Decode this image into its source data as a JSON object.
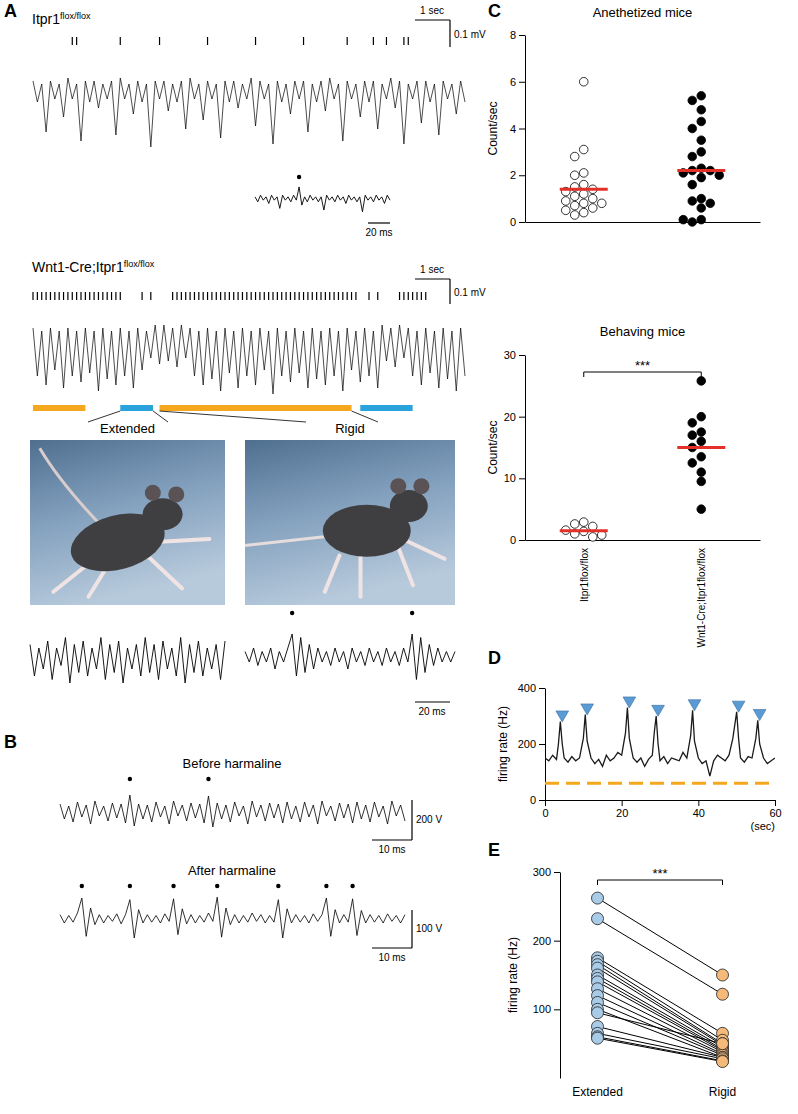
{
  "figure": {
    "panel_labels": [
      "A",
      "B",
      "C",
      "D",
      "E"
    ],
    "genotypes": [
      {
        "text": "Itpr1",
        "superscript": "flox/flox"
      },
      {
        "text": "Wnt1-Cre;Itpr1",
        "superscript": "flox/flox"
      }
    ],
    "photos": [
      {
        "label": "Extended"
      },
      {
        "label": "Rigid"
      }
    ]
  },
  "chart_data": [
    {
      "type": "line",
      "tick_labels": false,
      "marker": "tick",
      "ylim": [
        -0.2,
        0.1
      ],
      "scale_bars": [
        "1 sec",
        "0.1 mV"
      ],
      "values": [
        0.03,
        -0.04,
        0.02,
        -0.14,
        0.03,
        -0.03,
        0.02,
        -0.09,
        0.04,
        -0.03,
        0.02,
        -0.17,
        0.03,
        -0.04,
        0.03,
        -0.06,
        0.02,
        -0.03,
        0.03,
        -0.15,
        0.04,
        -0.03,
        0.02,
        -0.08,
        0.03,
        -0.04,
        0.02,
        -0.19,
        0.03,
        -0.03,
        0.03,
        -0.07,
        0.02,
        -0.04,
        0.03,
        -0.13,
        0.04,
        -0.03,
        0.02,
        -0.1,
        0.03,
        -0.03,
        0.02,
        -0.16,
        0.03,
        -0.04,
        0.03,
        -0.06,
        0.02,
        -0.03,
        0.04,
        -0.12,
        0.03,
        -0.03,
        0.02,
        -0.18,
        0.03,
        -0.04,
        0.02,
        -0.08,
        0.03,
        -0.03,
        0.03,
        -0.14,
        0.02,
        -0.04,
        0.03,
        -0.07,
        0.04,
        -0.03,
        0.02,
        -0.17,
        0.03,
        -0.03,
        0.02,
        -0.09,
        0.03,
        -0.04,
        0.03,
        -0.13,
        0.02,
        -0.03,
        0.04,
        -0.06,
        0.03,
        -0.18,
        0.02,
        -0.03,
        0.03,
        -0.11,
        0.03,
        -0.04,
        0.02,
        -0.15,
        0.03,
        -0.03,
        0.02,
        -0.08,
        0.03,
        -0.04
      ],
      "spikes": [
        9,
        10,
        20,
        29,
        40,
        51,
        62,
        72,
        78,
        81,
        85,
        86
      ]
    },
    {
      "type": "line",
      "tick_labels": false,
      "marker": "circle",
      "ylim": [
        -0.1,
        0.1
      ],
      "scale_bars": [
        "20 ms"
      ],
      "values": [
        0.01,
        -0.02,
        0.02,
        -0.01,
        0.01,
        -0.03,
        0.02,
        -0.01,
        0.01,
        -0.06,
        0.02,
        -0.01,
        0.01,
        -0.02,
        0.02,
        -0.01,
        0.07,
        -0.04,
        0.01,
        -0.02,
        0.02,
        -0.01,
        0.01,
        -0.02,
        0.01,
        -0.07,
        0.02,
        -0.01,
        0.01,
        -0.02,
        0.02,
        -0.01,
        0.01,
        -0.03,
        0.02,
        -0.01,
        0.01,
        -0.02,
        0.01,
        -0.08,
        0.02,
        -0.01,
        0.01,
        -0.02,
        0.02,
        -0.01,
        0.01,
        -0.03,
        0.02,
        -0.01
      ],
      "spikes": [
        16
      ]
    },
    {
      "type": "line",
      "tick_labels": false,
      "marker": "tick",
      "ylim": [
        -0.2,
        0.1
      ],
      "scale_bars": [
        "1 sec",
        "0.1 mV"
      ],
      "values": [
        0.04,
        -0.12,
        0.03,
        -0.15,
        0.04,
        -0.1,
        0.03,
        -0.16,
        0.04,
        -0.12,
        0.03,
        -0.14,
        0.04,
        -0.11,
        0.03,
        -0.17,
        0.04,
        -0.13,
        0.03,
        -0.15,
        0.04,
        -0.12,
        0.03,
        -0.16,
        0.04,
        -0.1,
        0.03,
        -0.06,
        0.05,
        -0.08,
        0.05,
        -0.07,
        0.04,
        -0.09,
        0.05,
        -0.06,
        0.04,
        -0.12,
        0.03,
        -0.15,
        0.04,
        -0.13,
        0.03,
        -0.17,
        0.04,
        -0.11,
        0.03,
        -0.16,
        0.04,
        -0.12,
        0.03,
        -0.15,
        0.04,
        -0.1,
        0.03,
        -0.18,
        0.04,
        -0.12,
        0.03,
        -0.14,
        0.04,
        -0.11,
        0.03,
        -0.16,
        0.04,
        -0.13,
        0.03,
        -0.15,
        0.04,
        -0.12,
        0.03,
        -0.17,
        0.04,
        -0.1,
        0.03,
        -0.14,
        0.04,
        -0.12,
        0.03,
        -0.16,
        0.05,
        -0.07,
        0.04,
        -0.09,
        0.05,
        -0.06,
        0.04,
        -0.12,
        0.03,
        -0.15,
        0.04,
        -0.11,
        0.03,
        -0.16,
        0.04,
        -0.13,
        0.03,
        -0.17,
        0.04,
        -0.12
      ],
      "spikes": [
        0,
        1,
        2,
        3,
        4,
        5,
        6,
        7,
        8,
        9,
        10,
        11,
        12,
        13,
        14,
        15,
        16,
        17,
        18,
        19,
        20,
        25,
        27,
        32,
        33,
        34,
        35,
        36,
        37,
        38,
        39,
        40,
        41,
        42,
        43,
        44,
        45,
        46,
        47,
        48,
        49,
        50,
        51,
        52,
        53,
        54,
        55,
        56,
        57,
        58,
        59,
        60,
        61,
        62,
        63,
        64,
        65,
        66,
        67,
        68,
        69,
        70,
        71,
        72,
        73,
        74,
        77,
        79,
        84,
        85,
        86,
        87,
        88,
        89,
        90
      ],
      "states": [
        {
          "start": 0,
          "end": 12,
          "color": "#f5a81d"
        },
        {
          "start": 20,
          "end": 27.5,
          "color": "#2aa3dc"
        },
        {
          "start": 29,
          "end": 73,
          "color": "#f5a81d"
        },
        {
          "start": 75,
          "end": 87,
          "color": "#2aa3dc"
        }
      ]
    },
    {
      "type": "line",
      "tick_labels": false,
      "ylim": [
        -0.1,
        0.1
      ],
      "values": [
        0.03,
        -0.06,
        0.02,
        -0.04,
        0.04,
        -0.07,
        0.02,
        -0.03,
        0.05,
        -0.08,
        0.03,
        -0.05,
        0.04,
        -0.06,
        0.02,
        -0.04,
        0.05,
        -0.07,
        0.03,
        -0.05,
        0.04,
        -0.08,
        0.02,
        -0.04,
        0.03,
        -0.06,
        0.05,
        -0.05,
        0.03,
        -0.07,
        0.04,
        -0.04,
        0.02,
        -0.06,
        0.05,
        -0.08,
        0.03,
        -0.05,
        0.04,
        -0.06,
        0.02,
        -0.04,
        0.03,
        -0.07,
        0.04
      ]
    },
    {
      "type": "line",
      "tick_labels": false,
      "marker": "circle",
      "ylim": [
        -0.1,
        0.1
      ],
      "scale_bars": [
        "20 ms"
      ],
      "values": [
        0.01,
        -0.02,
        0.02,
        -0.03,
        0.01,
        -0.02,
        0.02,
        -0.04,
        0.01,
        -0.02,
        0.02,
        0.06,
        -0.06,
        0.05,
        -0.05,
        0.03,
        -0.04,
        0.02,
        -0.02,
        0.01,
        -0.03,
        0.02,
        -0.02,
        0.01,
        -0.04,
        0.02,
        -0.02,
        0.01,
        -0.03,
        0.02,
        -0.02,
        0.01,
        -0.03,
        0.02,
        -0.02,
        0.01,
        -0.03,
        0.02,
        -0.02,
        0.06,
        -0.07,
        0.05,
        -0.05,
        0.03,
        -0.03,
        0.02,
        -0.02,
        0.01,
        -0.02,
        0.01
      ],
      "spikes": [
        11,
        39
      ]
    },
    {
      "type": "line",
      "tick_labels": false,
      "marker": "circle",
      "title": "Before harmaline",
      "ylim": [
        -250,
        250
      ],
      "scale_bars": [
        "10 ms",
        "200 V"
      ],
      "values": [
        60,
        -90,
        40,
        -120,
        80,
        -70,
        50,
        -140,
        90,
        -60,
        40,
        -110,
        70,
        -80,
        60,
        -130,
        150,
        -160,
        60,
        -90,
        50,
        -120,
        80,
        -70,
        40,
        -140,
        90,
        -60,
        50,
        -110,
        70,
        -80,
        60,
        -130,
        140,
        -170,
        70,
        -90,
        50,
        -120,
        80,
        -60,
        40,
        -140,
        90,
        -70,
        50,
        -110,
        70,
        -80,
        60,
        -130,
        80,
        -90,
        40,
        -120,
        80,
        -70,
        50,
        -140,
        90,
        -60,
        40,
        -110,
        70,
        -80,
        60,
        -130,
        80,
        -90,
        50,
        -120,
        80,
        -70,
        40,
        -140,
        90,
        -60,
        50,
        -110
      ],
      "spikes": [
        16,
        34
      ]
    },
    {
      "type": "line",
      "tick_labels": false,
      "marker": "circle",
      "title": "After harmaline",
      "ylim": [
        -150,
        150
      ],
      "scale_bars": [
        "10 ms",
        "100 V"
      ],
      "values": [
        20,
        -30,
        15,
        -25,
        30,
        120,
        -110,
        60,
        -40,
        20,
        -30,
        15,
        -20,
        25,
        -35,
        20,
        110,
        -120,
        50,
        -30,
        20,
        -25,
        15,
        -30,
        25,
        -20,
        115,
        -100,
        55,
        -35,
        20,
        -30,
        15,
        -25,
        30,
        -20,
        125,
        -115,
        60,
        -40,
        20,
        -30,
        15,
        -25,
        30,
        -20,
        20,
        -30,
        15,
        -25,
        110,
        -120,
        55,
        -30,
        20,
        -25,
        15,
        -30,
        25,
        -20,
        20,
        120,
        -110,
        50,
        -30,
        20,
        -25,
        115,
        -105,
        45,
        -30,
        20,
        -25,
        15,
        -30,
        25,
        -20,
        15,
        -30,
        20
      ],
      "spikes": [
        5,
        16,
        26,
        36,
        50,
        61,
        67
      ]
    },
    {
      "type": "strip",
      "title": "Anethetized mice",
      "y_label": "Count/sec",
      "tick_labels": "y",
      "ylim": [
        0,
        8
      ],
      "yticks": [
        0,
        2,
        4,
        6,
        8
      ],
      "marker": "circle",
      "colors": [
        "#ffffff",
        "#000000"
      ],
      "values": [
        [
          6.0,
          3.1,
          2.8,
          2.1,
          2.0,
          1.6,
          1.5,
          1.4,
          1.3,
          1.2,
          1.1,
          1.0,
          0.9,
          0.8,
          0.8,
          0.7,
          0.6,
          0.5,
          0.4,
          0.3
        ],
        [
          5.4,
          5.2,
          4.8,
          4.3,
          4.0,
          3.5,
          3.0,
          2.8,
          2.3,
          2.2,
          2.2,
          2.1,
          2.0,
          1.9,
          1.6,
          1.0,
          0.9,
          0.8,
          0.6,
          0.1,
          0.1,
          0.0
        ]
      ],
      "means": [
        1.4,
        2.2
      ]
    },
    {
      "type": "strip",
      "title": "Behaving mice",
      "y_label": "Count/sec",
      "categories": [
        "Itpr1flox/flox",
        "Wnt1-Cre;Itpr1flox/flox"
      ],
      "ylim": [
        0,
        30
      ],
      "yticks": [
        0,
        10,
        20,
        30
      ],
      "marker": "circle",
      "colors": [
        "#ffffff",
        "#000000"
      ],
      "values": [
        [
          2.9,
          2.6,
          2.2,
          1.6,
          1.4,
          1.0,
          0.8,
          0.5
        ],
        [
          25.8,
          20,
          19,
          17.5,
          17,
          16,
          15,
          13.5,
          12.5,
          11,
          9.5,
          5
        ]
      ],
      "means": [
        1.5,
        15
      ],
      "significance": "***"
    },
    {
      "type": "line",
      "y_label": "firing rate (Hz)",
      "x_label": "(sec)",
      "xlim": [
        0,
        60
      ],
      "xticks": [
        0,
        20,
        40,
        60
      ],
      "ylim": [
        0,
        400
      ],
      "yticks": [
        0,
        200,
        400
      ],
      "series": [
        {
          "type": "line",
          "color": "#1a1a1a",
          "line_style": "solid",
          "x": [
            0,
            1,
            2,
            3,
            3.5,
            4,
            4.5,
            5,
            6,
            7,
            8,
            9,
            10,
            10.5,
            11,
            12,
            13,
            14,
            15,
            16,
            17,
            18,
            19,
            20,
            21,
            21.5,
            22,
            23,
            24,
            25,
            26,
            27,
            28,
            28.5,
            29,
            29.5,
            30,
            31,
            32,
            33,
            34,
            35,
            36,
            37,
            38,
            38.5,
            39,
            40,
            41,
            42,
            43,
            44,
            45,
            46,
            47,
            48,
            49,
            50,
            50.5,
            51,
            52,
            53,
            54,
            55,
            55.5,
            56,
            57,
            58,
            59,
            60
          ],
          "values": [
            150,
            140,
            160,
            145,
            200,
            280,
            200,
            150,
            135,
            155,
            140,
            150,
            220,
            305,
            210,
            150,
            130,
            145,
            120,
            160,
            140,
            150,
            170,
            160,
            240,
            330,
            220,
            150,
            135,
            150,
            120,
            145,
            160,
            240,
            300,
            200,
            140,
            155,
            130,
            150,
            145,
            140,
            170,
            150,
            230,
            320,
            210,
            150,
            130,
            140,
            85,
            140,
            160,
            150,
            140,
            160,
            220,
            315,
            220,
            150,
            135,
            155,
            150,
            220,
            285,
            200,
            150,
            130,
            140,
            150
          ]
        },
        {
          "type": "scatter",
          "color": "#5b9bd5",
          "marker": "triangle",
          "x": [
            4.5,
            11,
            22,
            29.5,
            39,
            50.5,
            56
          ],
          "values": [
            305,
            330,
            355,
            325,
            345,
            340,
            310
          ]
        },
        {
          "type": "line",
          "color": "#f5a81d",
          "line_style": "dashed",
          "x": [
            0,
            60
          ],
          "values": [
            60,
            60
          ]
        }
      ]
    },
    {
      "type": "paired",
      "y_label": "firing rate (Hz)",
      "categories": [
        "Extended",
        "Rigid"
      ],
      "ylim": [
        0,
        300
      ],
      "yticks": [
        100,
        200,
        300
      ],
      "marker": "circle",
      "colors": [
        "#a8cbe8",
        "#f5b97a"
      ],
      "values": [
        [
          262,
          232,
          175,
          170,
          165,
          160,
          150,
          145,
          140,
          130,
          120,
          110,
          100,
          95,
          75,
          65,
          60,
          58
        ],
        [
          150,
          122,
          65,
          55,
          50,
          48,
          45,
          42,
          40,
          38,
          35,
          33,
          30,
          50,
          30,
          28,
          25,
          24
        ]
      ],
      "significance": "***"
    }
  ]
}
